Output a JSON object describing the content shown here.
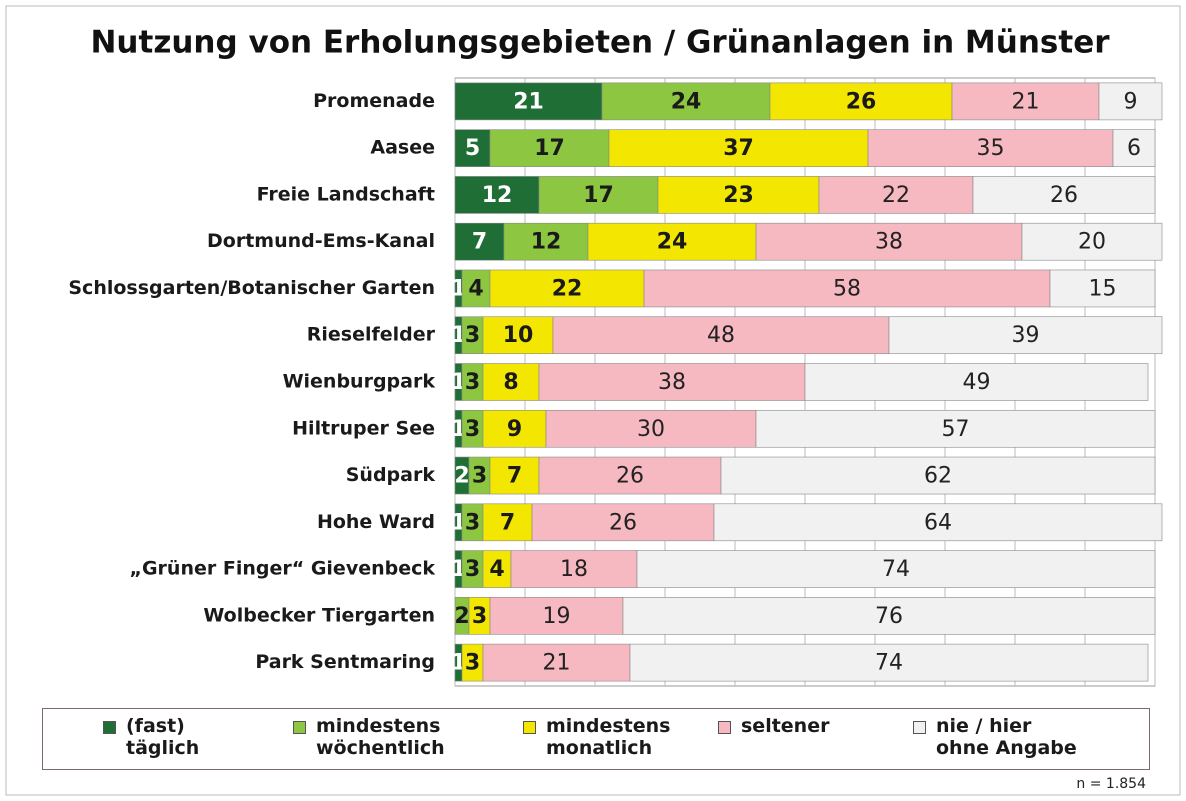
{
  "chart_data": {
    "type": "stacked-bar-horizontal",
    "title": "Nutzung von Erholungsgebieten / Grünanlagen in Münster",
    "categories": [
      "Promenade",
      "Aasee",
      "Freie Landschaft",
      "Dortmund-Ems-Kanal",
      "Schlossgarten/Botanischer Garten",
      "Rieselfelder",
      "Wienburgpark",
      "Hiltruper See",
      "Südpark",
      "Hohe Ward",
      "„Grüner Finger“ Gievenbeck",
      "Wolbecker Tiergarten",
      "Park Sentmaring"
    ],
    "series": [
      {
        "name": "(fast) täglich",
        "color": "#1f6e36",
        "values": [
          21,
          5,
          12,
          7,
          1,
          1,
          1,
          1,
          2,
          1,
          1,
          0,
          1
        ]
      },
      {
        "name": "mindestens wöchentlich",
        "color": "#8dc641",
        "values": [
          24,
          17,
          17,
          12,
          4,
          3,
          3,
          3,
          3,
          3,
          3,
          2,
          0
        ]
      },
      {
        "name": "mindestens monatlich",
        "color": "#f3e600",
        "values": [
          26,
          37,
          23,
          24,
          22,
          10,
          8,
          9,
          7,
          7,
          4,
          3,
          3
        ]
      },
      {
        "name": "seltener",
        "color": "#f6b9c1",
        "values": [
          21,
          35,
          22,
          38,
          58,
          48,
          38,
          30,
          26,
          26,
          18,
          19,
          21
        ]
      },
      {
        "name": "nie / hier ohne Angabe",
        "color": "#f1f1f1",
        "values": [
          9,
          6,
          26,
          20,
          15,
          39,
          49,
          57,
          62,
          64,
          74,
          76,
          74
        ]
      }
    ],
    "xlim": [
      0,
      100
    ],
    "xticks": [
      0,
      10,
      20,
      30,
      40,
      50,
      60,
      70,
      80,
      90,
      100
    ],
    "grid": true,
    "note": "n = 1.854"
  }
}
